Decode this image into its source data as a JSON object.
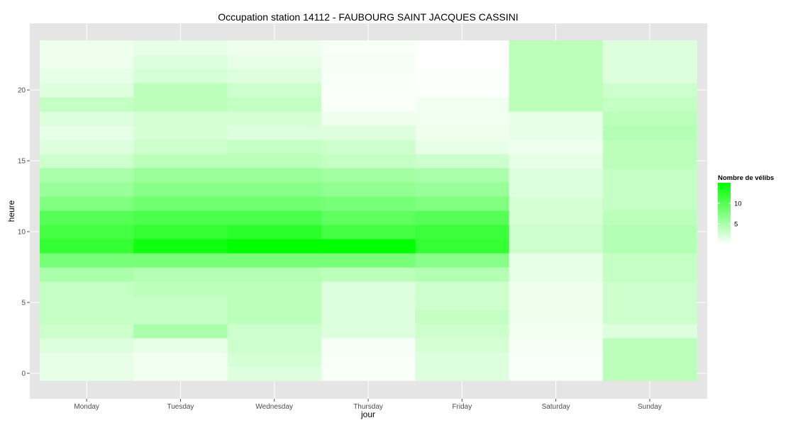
{
  "chart_data": {
    "type": "heatmap",
    "title": "Occupation station 14112 - FAUBOURG SAINT JACQUES CASSINI",
    "xlabel": "jour",
    "ylabel": "heure",
    "categories": [
      "Monday",
      "Tuesday",
      "Wednesday",
      "Thursday",
      "Friday",
      "Saturday",
      "Sunday"
    ],
    "y_hours": [
      0,
      1,
      2,
      3,
      4,
      5,
      6,
      7,
      8,
      9,
      10,
      11,
      12,
      13,
      14,
      15,
      16,
      17,
      18,
      19,
      20,
      21,
      22,
      23
    ],
    "y_ticks": [
      0,
      5,
      10,
      15,
      20
    ],
    "ylim": [
      -0.5,
      23.5
    ],
    "grid": true,
    "values": [
      [
        1.5,
        0.8,
        2.0,
        0.5,
        2.0,
        0.4,
        4.0
      ],
      [
        1.5,
        0.8,
        2.5,
        0.5,
        2.0,
        0.4,
        4.0
      ],
      [
        2.0,
        1.5,
        3.0,
        0.6,
        2.5,
        0.6,
        4.0
      ],
      [
        3.0,
        5.0,
        3.0,
        2.0,
        3.0,
        0.8,
        2.0
      ],
      [
        3.5,
        3.5,
        4.0,
        2.0,
        3.5,
        1.0,
        3.0
      ],
      [
        3.5,
        3.5,
        4.0,
        2.0,
        3.0,
        1.0,
        3.0
      ],
      [
        3.5,
        4.0,
        4.0,
        2.0,
        3.0,
        1.0,
        3.0
      ],
      [
        5.0,
        4.5,
        4.5,
        4.0,
        4.5,
        1.5,
        3.5
      ],
      [
        8.0,
        8.0,
        8.0,
        8.0,
        7.0,
        1.5,
        3.5
      ],
      [
        12.0,
        14.0,
        15.0,
        15.0,
        12.0,
        3.0,
        4.5
      ],
      [
        11.0,
        12.0,
        12.5,
        11.0,
        11.5,
        3.0,
        4.5
      ],
      [
        10.0,
        10.5,
        10.5,
        9.5,
        10.0,
        2.5,
        4.0
      ],
      [
        7.5,
        8.5,
        8.5,
        8.0,
        7.5,
        2.5,
        3.5
      ],
      [
        6.0,
        7.0,
        7.0,
        6.5,
        6.0,
        2.0,
        3.5
      ],
      [
        5.0,
        6.0,
        6.0,
        5.5,
        5.0,
        2.0,
        3.5
      ],
      [
        3.0,
        4.0,
        4.0,
        3.5,
        3.0,
        1.5,
        4.0
      ],
      [
        2.0,
        3.0,
        3.5,
        3.0,
        1.5,
        1.0,
        4.0
      ],
      [
        1.5,
        2.5,
        2.0,
        2.0,
        1.0,
        1.5,
        4.5
      ],
      [
        2.0,
        2.5,
        2.5,
        1.0,
        0.8,
        1.5,
        4.0
      ],
      [
        3.5,
        4.0,
        3.5,
        0.3,
        0.8,
        4.0,
        3.5
      ],
      [
        2.0,
        4.0,
        3.0,
        0.3,
        0.2,
        4.0,
        3.0
      ],
      [
        1.5,
        2.5,
        2.0,
        0.5,
        0.1,
        4.0,
        2.0
      ],
      [
        1.0,
        2.0,
        1.5,
        0.6,
        0.0,
        4.0,
        2.0
      ],
      [
        1.0,
        1.5,
        1.0,
        0.5,
        0.0,
        4.0,
        2.0
      ]
    ],
    "color_scale": {
      "low": "#ffffff",
      "high": "#00ff00",
      "min": 0,
      "max": 15
    },
    "legend": {
      "title": "Nombre de vélibs",
      "ticks": [
        5,
        10
      ],
      "placement": "right"
    },
    "colors": {
      "panel_background": "#e5e5e5",
      "grid": "#ffffff"
    }
  }
}
